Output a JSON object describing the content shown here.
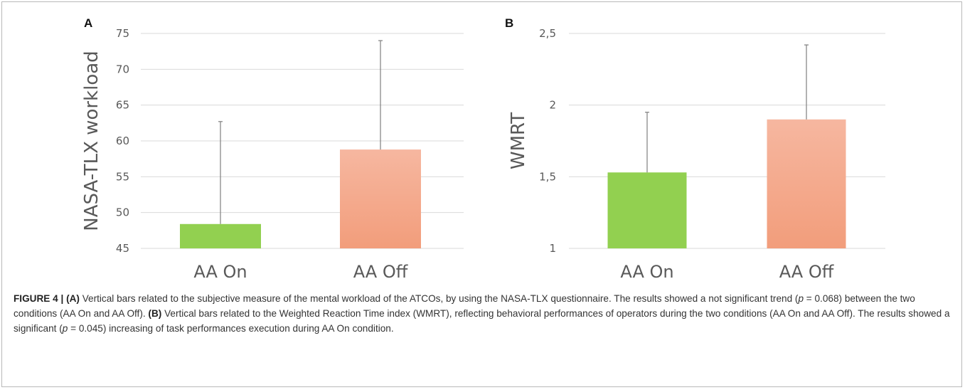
{
  "chart_data": [
    {
      "type": "bar",
      "panel": "A",
      "categories": [
        "AA On",
        "AA Off"
      ],
      "values": [
        48.4,
        58.8
      ],
      "error_upper": [
        62.7,
        74.0
      ],
      "ylabel": "NASA-TLX workload",
      "ylim": [
        45,
        75
      ],
      "yticks": [
        "45",
        "50",
        "55",
        "60",
        "65",
        "70",
        "75"
      ],
      "grid": true,
      "colors": [
        "#92d050",
        "#f4a98a"
      ]
    },
    {
      "type": "bar",
      "panel": "B",
      "categories": [
        "AA On",
        "AA Off"
      ],
      "values": [
        1.53,
        1.9
      ],
      "error_upper": [
        1.95,
        2.42
      ],
      "ylabel": "WMRT",
      "ylim": [
        1,
        2.5
      ],
      "yticks": [
        "1",
        "1,5",
        "2",
        "2,5"
      ],
      "grid": true,
      "colors": [
        "#92d050",
        "#f4a98a"
      ]
    }
  ],
  "caption": {
    "figure_label": "FIGURE 4 |",
    "part_a_label": "(A)",
    "part_a_text_1": "Vertical bars related to the subjective measure of the mental workload of the ATCOs, by using the NASA-TLX questionnaire. The results showed a not significant trend (",
    "p_symbol": "p",
    "part_a_text_2": " = 0.068) between the two conditions (AA On and AA Off).",
    "part_b_label": "(B)",
    "part_b_text_1": "Vertical bars related to the Weighted Reaction Time index (WMRT), reflecting behavioral performances of operators during the two conditions (AA On and AA Off). The results showed a significant (",
    "part_b_text_2": " = 0.045) increasing of task performances execution during AA On condition."
  }
}
